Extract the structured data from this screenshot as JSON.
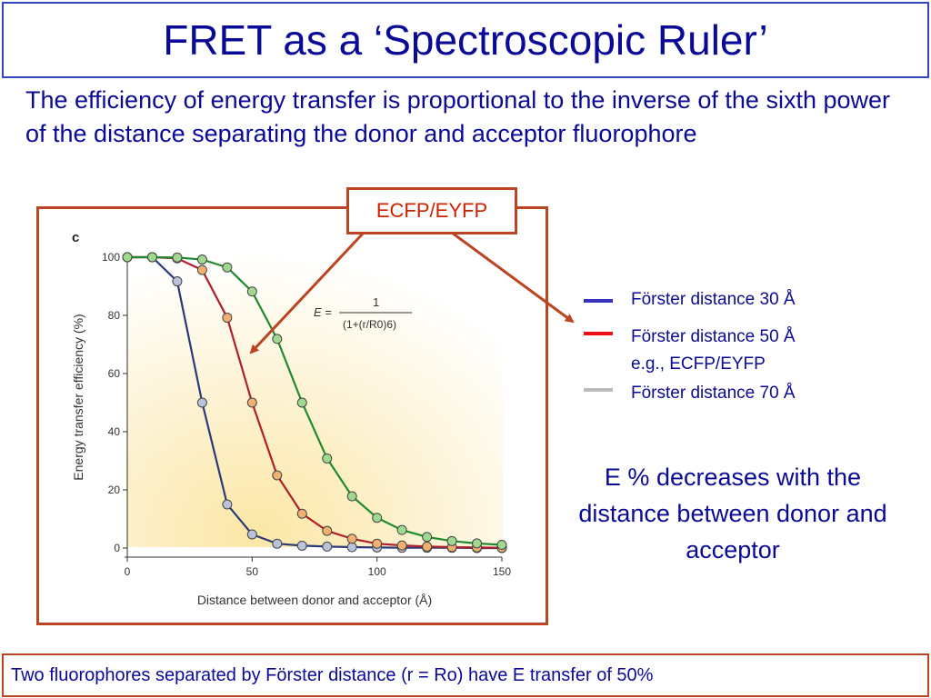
{
  "slide": {
    "title": "FRET as a ‘Spectroscopic Ruler’",
    "intro": "The efficiency of energy transfer is proportional to the inverse of the sixth power of the distance separating the donor and acceptor fluorophore",
    "callout_label": "ECFP/EYFP",
    "note": "E % decreases with the distance between donor and acceptor",
    "footer": "Two fluorophores separated by Förster distance (r = Ro) have E transfer of 50%"
  },
  "legend": [
    {
      "color": "#3333bb",
      "label": "Förster distance 30 Å",
      "sublabel": ""
    },
    {
      "color": "#ee1111",
      "label": "Förster distance  50 Å",
      "sublabel": "e.g., ECFP/EYFP"
    },
    {
      "color": "#bbbbbb",
      "label": "Förster distance 70 Å",
      "sublabel": ""
    }
  ],
  "colors": {
    "title": "#0a0a96",
    "frame_border": "#bb4422",
    "callout_text": "#cc2200"
  },
  "chart_data": {
    "type": "line",
    "panel_label": "c",
    "xlabel": "Distance between donor and acceptor (Å)",
    "ylabel": "Energy transfer efficiency (%)",
    "xlim": [
      0,
      150
    ],
    "ylim": [
      0,
      100
    ],
    "xticks": [
      0,
      50,
      100,
      150
    ],
    "yticks": [
      0,
      20,
      40,
      60,
      80,
      100
    ],
    "grid": false,
    "background": "pale yellow gradient",
    "equation": {
      "lhs": "E =",
      "numerator": "1",
      "denominator": "(1+(r/R0)6)"
    },
    "x": [
      0,
      10,
      20,
      30,
      40,
      50,
      60,
      70,
      80,
      90,
      100,
      110,
      120,
      130,
      140,
      150
    ],
    "series": [
      {
        "R0": 30,
        "line_color": "#2b3a7a",
        "marker_fill": "#b8c2d8",
        "values": [
          100,
          100,
          91.7,
          50,
          15,
          4.7,
          1.5,
          0.8,
          0.5,
          0.3,
          0.2,
          0.1,
          0.1,
          0.1,
          0,
          0
        ]
      },
      {
        "R0": 50,
        "line_color": "#b0202a",
        "marker_fill": "#f0b070",
        "values": [
          100,
          100,
          99.6,
          95.6,
          79.2,
          50,
          25,
          11.8,
          5.9,
          3.2,
          1.5,
          0.9,
          0.5,
          0.3,
          0.2,
          0.1
        ]
      },
      {
        "R0": 70,
        "line_color": "#1f8a2e",
        "marker_fill": "#a0d890",
        "values": [
          100,
          100,
          99.9,
          99.2,
          96.5,
          88.2,
          71.9,
          50,
          30.8,
          17.8,
          10.4,
          6.2,
          3.8,
          2.4,
          1.6,
          1.1
        ]
      }
    ]
  }
}
